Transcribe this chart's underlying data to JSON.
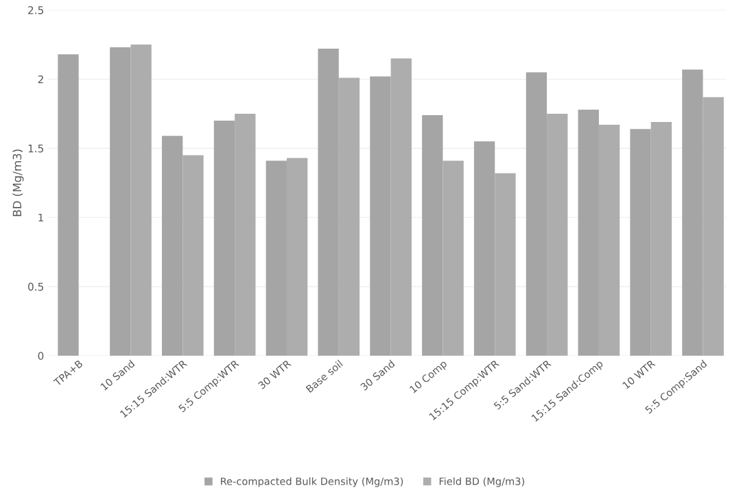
{
  "chart_data": {
    "type": "bar",
    "ylabel": "BD (Mg/m3)",
    "categories": [
      "TPA+B",
      "10 Sand",
      "15:15 Sand:WTR",
      "5:5 Comp:WTR",
      "30 WTR",
      "Base soil",
      "30 Sand",
      "10 Comp",
      "15:15 Comp:WTR",
      "5:5 Sand:WTR",
      "15:15 Sand:Comp",
      "10 WTR",
      "5:5 Comp:Sand"
    ],
    "series": [
      {
        "name": "Re-compacted Bulk Density (Mg/m3)",
        "color": "#a5a5a5",
        "values": [
          2.18,
          2.23,
          1.59,
          1.7,
          1.41,
          2.22,
          2.02,
          1.74,
          1.55,
          2.05,
          1.78,
          1.64,
          2.07
        ]
      },
      {
        "name": "Field BD (Mg/m3)",
        "color": "#adadad",
        "values": [
          null,
          2.25,
          1.45,
          1.75,
          1.43,
          2.01,
          2.15,
          1.41,
          1.32,
          1.75,
          1.67,
          1.69,
          1.87
        ]
      }
    ],
    "ylim": [
      0,
      2.5
    ],
    "yticks": [
      0,
      0.5,
      1,
      1.5,
      2,
      2.5
    ],
    "grid": "y",
    "legend": "bottom"
  }
}
